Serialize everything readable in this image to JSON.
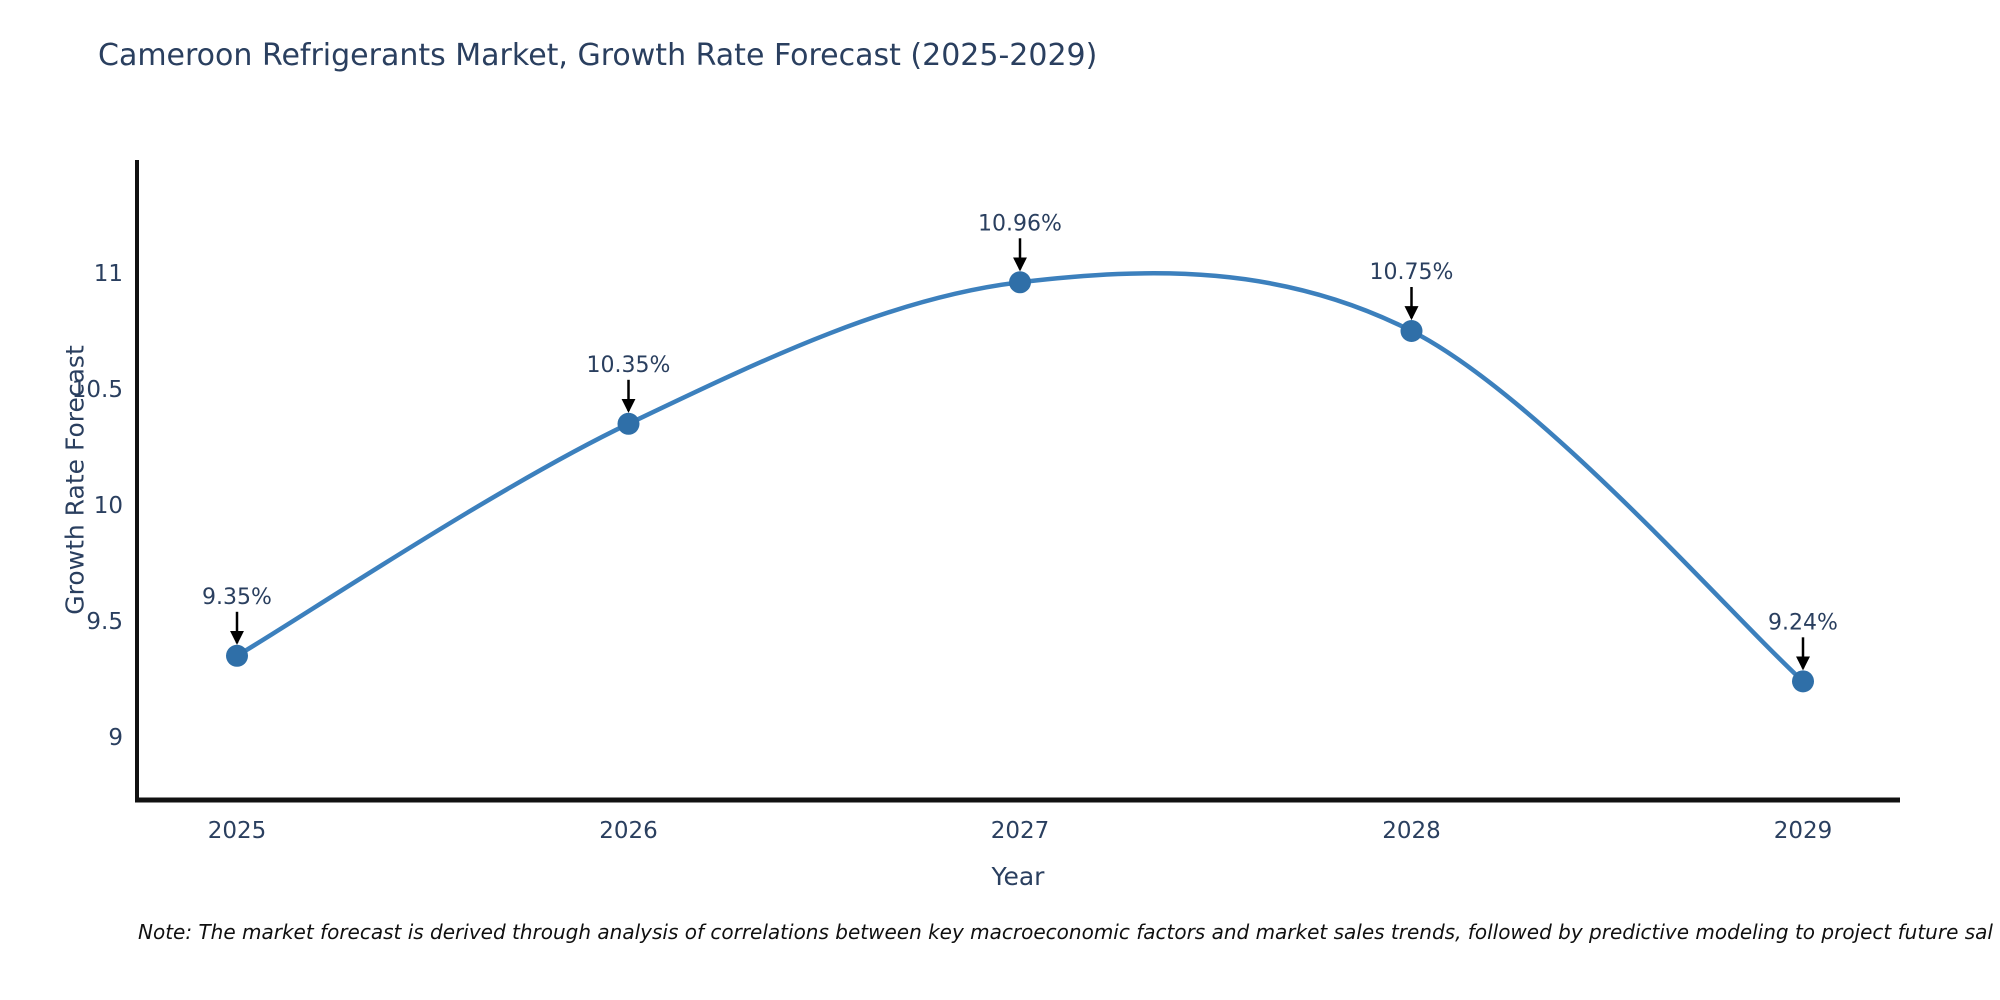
{
  "title": "Cameroon Refrigerants Market, Growth Rate Forecast (2025-2029)",
  "note": "Note: The market forecast is derived through analysis of correlations between key macroeconomic factors and market sales trends, followed by predictive modeling to project future sal",
  "chart_data": {
    "type": "line",
    "line_shape": "spline",
    "title": "Cameroon Refrigerants Market, Growth Rate Forecast (2025-2029)",
    "xlabel": "Year",
    "ylabel": "Growth Rate Forecast",
    "categories": [
      "2025",
      "2026",
      "2027",
      "2028",
      "2029"
    ],
    "values": [
      9.35,
      10.35,
      10.96,
      10.75,
      9.24
    ],
    "point_labels": [
      "9.35%",
      "10.35%",
      "10.96%",
      "10.75%",
      "9.24%"
    ],
    "yticks": [
      9,
      9.5,
      10,
      10.5,
      11
    ],
    "ylim": [
      8.72,
      11.49
    ],
    "grid": false,
    "legend": false,
    "markers": true,
    "annotation_arrows": true,
    "colors": {
      "line": "#3c80bd",
      "marker": "#2f6fa8",
      "text": "#2a3f5f",
      "axis": "#111111",
      "arrow": "#000000",
      "background": "#ffffff"
    }
  }
}
